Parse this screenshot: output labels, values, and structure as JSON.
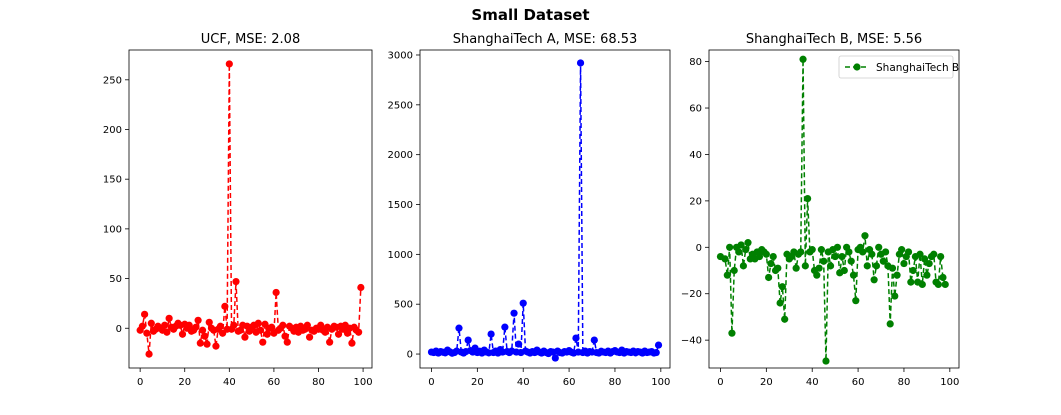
{
  "suptitle": "Small Dataset",
  "chart_data": [
    {
      "type": "line",
      "title": "UCF, MSE: 2.08",
      "color": "#ff0000",
      "linestyle": "dashed",
      "marker": "circle",
      "xlim": [
        -5,
        104
      ],
      "ylim": [
        -40,
        280
      ],
      "xticks": [
        0,
        20,
        40,
        60,
        80,
        100
      ],
      "yticks": [
        0,
        50,
        100,
        150,
        200,
        250
      ],
      "legend": null,
      "x": [
        0,
        1,
        2,
        3,
        4,
        5,
        6,
        7,
        8,
        9,
        10,
        11,
        12,
        13,
        14,
        15,
        16,
        17,
        18,
        19,
        20,
        21,
        22,
        23,
        24,
        25,
        26,
        27,
        28,
        29,
        30,
        31,
        32,
        33,
        34,
        35,
        36,
        37,
        38,
        39,
        40,
        41,
        42,
        43,
        44,
        45,
        46,
        47,
        48,
        49,
        50,
        51,
        52,
        53,
        54,
        55,
        56,
        57,
        58,
        59,
        60,
        61,
        62,
        63,
        64,
        65,
        66,
        67,
        68,
        69,
        70,
        71,
        72,
        73,
        74,
        75,
        76,
        77,
        78,
        79,
        80,
        81,
        82,
        83,
        84,
        85,
        86,
        87,
        88,
        89,
        90,
        91,
        92,
        93,
        94,
        95,
        96,
        97,
        98,
        99
      ],
      "values": [
        -2,
        2,
        14,
        -5,
        -26,
        5,
        -3,
        -1,
        2,
        0,
        -2,
        3,
        -4,
        10,
        1,
        -1,
        2,
        5,
        3,
        -6,
        4,
        0,
        3,
        -3,
        -2,
        1,
        8,
        -15,
        -2,
        -8,
        -16,
        6,
        0,
        -2,
        -18,
        -1,
        2,
        -5,
        22,
        -1,
        266,
        -1,
        3,
        47,
        -3,
        -2,
        3,
        -9,
        2,
        -3,
        1,
        3,
        -4,
        5,
        -2,
        -14,
        4,
        -6,
        0,
        1,
        -5,
        36,
        -2,
        0,
        3,
        -8,
        -14,
        2,
        0,
        -3,
        1,
        -4,
        2,
        -2,
        -1,
        3,
        -9,
        -2,
        -3,
        0,
        -1,
        3,
        -2,
        -4,
        1,
        -14,
        -1,
        2,
        1,
        -6,
        2,
        -1,
        3,
        -5,
        0,
        -15,
        1,
        -2,
        -4,
        41
      ],
      "xlabel": "",
      "ylabel": ""
    },
    {
      "type": "line",
      "title": "ShanghaiTech A, MSE: 68.53",
      "color": "#0000ff",
      "linestyle": "dashed",
      "marker": "circle",
      "xlim": [
        -5,
        104
      ],
      "ylim": [
        -140,
        3050
      ],
      "xticks": [
        0,
        20,
        40,
        60,
        80,
        100
      ],
      "yticks": [
        0,
        500,
        1000,
        1500,
        2000,
        2500,
        3000
      ],
      "legend": null,
      "x": [
        0,
        1,
        2,
        3,
        4,
        5,
        6,
        7,
        8,
        9,
        10,
        11,
        12,
        13,
        14,
        15,
        16,
        17,
        18,
        19,
        20,
        21,
        22,
        23,
        24,
        25,
        26,
        27,
        28,
        29,
        30,
        31,
        32,
        33,
        34,
        35,
        36,
        37,
        38,
        39,
        40,
        41,
        42,
        43,
        44,
        45,
        46,
        47,
        48,
        49,
        50,
        51,
        52,
        53,
        54,
        55,
        56,
        57,
        58,
        59,
        60,
        61,
        62,
        63,
        64,
        65,
        66,
        67,
        68,
        69,
        70,
        71,
        72,
        73,
        74,
        75,
        76,
        77,
        78,
        79,
        80,
        81,
        82,
        83,
        84,
        85,
        86,
        87,
        88,
        89,
        90,
        91,
        92,
        93,
        94,
        95,
        96,
        97,
        98,
        99
      ],
      "values": [
        20,
        15,
        30,
        10,
        25,
        18,
        12,
        40,
        22,
        8,
        15,
        30,
        260,
        20,
        10,
        25,
        140,
        35,
        20,
        60,
        15,
        28,
        10,
        40,
        20,
        12,
        200,
        15,
        30,
        10,
        45,
        20,
        270,
        25,
        15,
        30,
        410,
        20,
        100,
        15,
        510,
        30,
        20,
        10,
        25,
        15,
        40,
        20,
        10,
        30,
        15,
        5,
        25,
        20,
        -40,
        30,
        15,
        10,
        25,
        20,
        35,
        18,
        10,
        160,
        20,
        2920,
        15,
        30,
        10,
        25,
        20,
        140,
        15,
        10,
        28,
        20,
        15,
        30,
        10,
        25,
        35,
        20,
        15,
        40,
        10,
        25,
        20,
        15,
        30,
        12,
        25,
        20,
        10,
        30,
        15,
        20,
        25,
        10,
        15,
        90
      ],
      "xlabel": "",
      "ylabel": ""
    },
    {
      "type": "line",
      "title": "ShanghaiTech B, MSE: 5.56",
      "color": "#008000",
      "linestyle": "dashed",
      "marker": "circle",
      "xlim": [
        -5,
        104
      ],
      "ylim": [
        -52,
        85
      ],
      "xticks": [
        0,
        20,
        40,
        60,
        80,
        100
      ],
      "yticks": [
        -40,
        -20,
        0,
        20,
        40,
        60,
        80
      ],
      "legend": "ShanghaiTech B",
      "x": [
        0,
        2,
        3,
        4,
        5,
        6,
        7,
        8,
        9,
        10,
        11,
        12,
        13,
        14,
        15,
        16,
        17,
        18,
        19,
        20,
        21,
        22,
        23,
        24,
        25,
        26,
        27,
        28,
        29,
        30,
        31,
        32,
        33,
        34,
        35,
        36,
        37,
        38,
        39,
        40,
        41,
        42,
        43,
        44,
        45,
        46,
        47,
        48,
        49,
        50,
        51,
        52,
        53,
        54,
        55,
        56,
        57,
        58,
        59,
        60,
        61,
        62,
        63,
        64,
        65,
        66,
        67,
        68,
        69,
        70,
        71,
        72,
        73,
        74,
        75,
        76,
        77,
        78,
        79,
        80,
        81,
        82,
        83,
        84,
        85,
        86,
        87,
        88,
        89,
        90,
        91,
        92,
        93,
        94,
        95,
        96,
        97,
        98
      ],
      "values": [
        -4,
        -5,
        -12,
        0,
        -37,
        -10,
        0,
        -2,
        1,
        -8,
        -1,
        2,
        -5,
        -3,
        -5,
        -2,
        -4,
        -1,
        -2,
        -3,
        -13,
        -7,
        -4,
        -10,
        -9,
        -24,
        -17,
        -31,
        -3,
        -5,
        -4,
        -2,
        -9,
        -3,
        -2,
        81,
        -8,
        21,
        -2,
        -1,
        -10,
        -12,
        -9,
        -1,
        -6,
        -49,
        -2,
        -8,
        -1,
        -4,
        0,
        -11,
        -4,
        -10,
        0,
        -2,
        -6,
        -12,
        -23,
        -1,
        0,
        -2,
        5,
        -8,
        -1,
        -3,
        -14,
        -8,
        0,
        -3,
        -6,
        -2,
        -8,
        -33,
        -9,
        -21,
        -12,
        -3,
        -1,
        -7,
        -4,
        -2,
        -15,
        -10,
        -4,
        -15,
        -3,
        -16,
        -5,
        -12,
        -7,
        -4,
        -3,
        -15,
        -16,
        -4,
        -13,
        -16
      ],
      "xlabel": "",
      "ylabel": ""
    }
  ]
}
